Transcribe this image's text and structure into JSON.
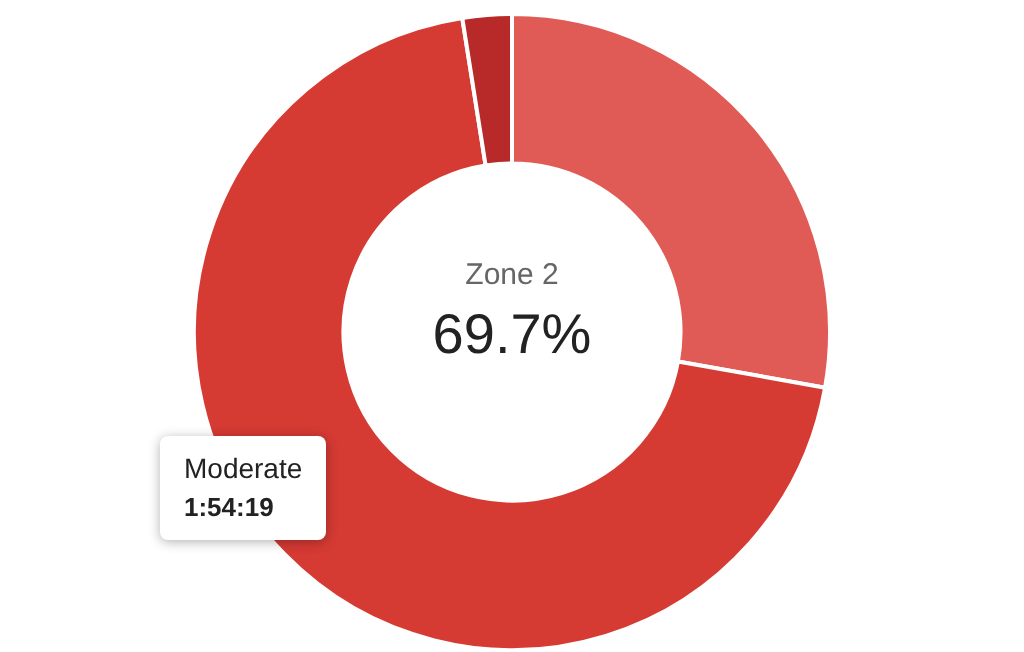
{
  "chart_data": {
    "type": "donut",
    "categories": [
      null,
      "Moderate",
      null
    ],
    "values": [
      27.8,
      69.7,
      2.5
    ],
    "colors": [
      "#e05b55",
      "#d53a33",
      "#b8292a"
    ],
    "value_labels": [
      null,
      "69.7%",
      null
    ],
    "annotations": [
      "Zone 2",
      "1:54:19"
    ],
    "legend": false
  }
}
